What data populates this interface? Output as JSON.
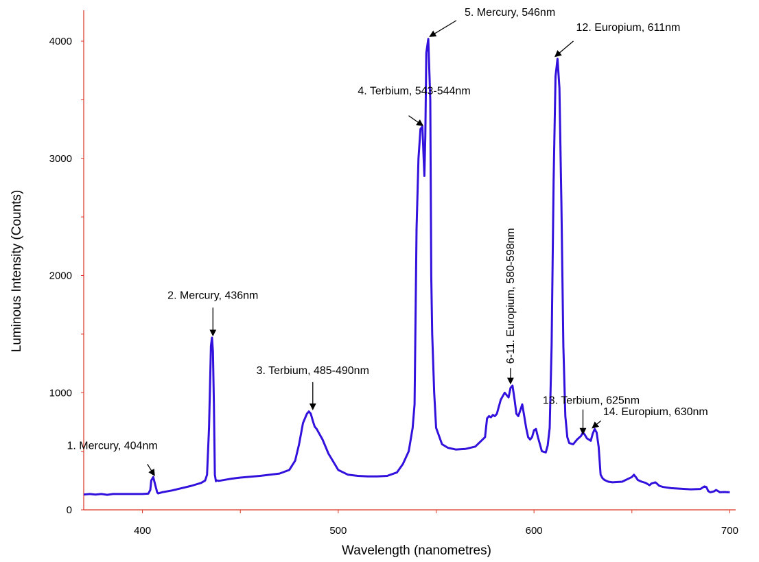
{
  "chart_data": {
    "type": "line",
    "xlabel": "Wavelength (nanometres)",
    "ylabel": "Luminous Intensity (Counts)",
    "xlim": [
      370,
      703
    ],
    "ylim": [
      0,
      4200
    ],
    "x_ticks": [
      400,
      500,
      600,
      700
    ],
    "y_ticks": [
      0,
      1000,
      2000,
      3000,
      4000
    ],
    "grid": false,
    "colors": {
      "series": "#3311dd",
      "axes": "#dd3322",
      "arrows": "#000000"
    },
    "series": [
      {
        "x": [
          370,
          373,
          376,
          379,
          382,
          385,
          390,
          395,
          400,
          403,
          404,
          404.5,
          405.5,
          406.5,
          407.5,
          408,
          410,
          415,
          420,
          425,
          430,
          432,
          433,
          434,
          435,
          435.5,
          436,
          436.5,
          437,
          437.5,
          438,
          438.5,
          439,
          440,
          445,
          450,
          460,
          470,
          475,
          478,
          480,
          482,
          484,
          485,
          486,
          487,
          488,
          489,
          490,
          492,
          495,
          500,
          505,
          510,
          515,
          520,
          525,
          530,
          533,
          536,
          538,
          539,
          540,
          541,
          542,
          543,
          543.5,
          544,
          544.5,
          545,
          546,
          547,
          547.5,
          548,
          549,
          550,
          553,
          556,
          560,
          565,
          570,
          575,
          576,
          577,
          578,
          579,
          580,
          581,
          583,
          585,
          586,
          587,
          588,
          589,
          590,
          591,
          592,
          593,
          594,
          595,
          596,
          597,
          598,
          599,
          600,
          601,
          602,
          604,
          606,
          607,
          608,
          609,
          610,
          611,
          612,
          613,
          614,
          615,
          616,
          617,
          618,
          620,
          622,
          624,
          625,
          626,
          627,
          628,
          629,
          630,
          631,
          632,
          633,
          634,
          635,
          636,
          638,
          640,
          645,
          650,
          651,
          652,
          653,
          655,
          657,
          658,
          659,
          660,
          662,
          663,
          664,
          666,
          670,
          675,
          680,
          685,
          687,
          688,
          689,
          690,
          692,
          693,
          694,
          695,
          697,
          700
        ],
        "y": [
          130,
          135,
          130,
          135,
          128,
          135,
          135,
          135,
          135,
          138,
          170,
          250,
          280,
          215,
          150,
          140,
          150,
          165,
          185,
          205,
          230,
          250,
          300,
          700,
          1400,
          1470,
          1350,
          900,
          300,
          245,
          250,
          250,
          248,
          250,
          265,
          275,
          290,
          310,
          340,
          420,
          560,
          740,
          820,
          840,
          820,
          760,
          710,
          690,
          660,
          600,
          480,
          340,
          300,
          290,
          285,
          285,
          290,
          320,
          390,
          500,
          700,
          900,
          2400,
          3000,
          3250,
          3270,
          3050,
          2850,
          3200,
          3900,
          4020,
          3500,
          2000,
          1500,
          1000,
          700,
          560,
          530,
          515,
          520,
          540,
          620,
          780,
          800,
          790,
          810,
          800,
          820,
          940,
          1000,
          980,
          960,
          1040,
          1060,
          950,
          820,
          800,
          850,
          900,
          800,
          700,
          620,
          600,
          620,
          680,
          690,
          620,
          500,
          490,
          550,
          700,
          1400,
          2800,
          3700,
          3850,
          3600,
          2600,
          1400,
          800,
          620,
          570,
          560,
          600,
          630,
          660,
          640,
          610,
          600,
          590,
          650,
          690,
          660,
          540,
          300,
          270,
          255,
          240,
          235,
          240,
          280,
          300,
          280,
          255,
          240,
          230,
          220,
          210,
          225,
          235,
          220,
          205,
          195,
          185,
          180,
          175,
          178,
          200,
          195,
          160,
          150,
          158,
          170,
          160,
          150,
          152,
          150
        ]
      }
    ],
    "annotations": [
      {
        "text": "1. Mercury, 404nm",
        "x": 406,
        "y": 285
      },
      {
        "text": "2. Mercury, 436nm",
        "x": 436,
        "y": 1480
      },
      {
        "text": "3. Terbium, 485-490nm",
        "x": 487,
        "y": 850
      },
      {
        "text": "4. Terbium, 543-544nm",
        "x": 543,
        "y": 3270
      },
      {
        "text": "5. Mercury, 546nm",
        "x": 547,
        "y": 4030
      },
      {
        "text": "6-11. Europium, 580-598nm",
        "x": 588,
        "y": 1070,
        "rotated": true
      },
      {
        "text": "12. Europium, 611nm",
        "x": 611,
        "y": 3860
      },
      {
        "text": "13. Terbium, 625nm",
        "x": 625,
        "y": 640
      },
      {
        "text": "14. Europium, 630nm",
        "x": 630,
        "y": 690
      }
    ]
  }
}
